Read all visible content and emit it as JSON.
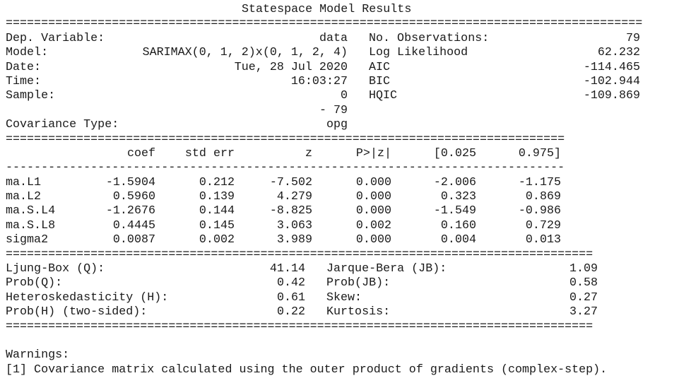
{
  "title": "Statespace Model Results",
  "header": {
    "left": [
      {
        "label": "Dep. Variable:",
        "value": "data"
      },
      {
        "label": "Model:",
        "value": "SARIMAX(0, 1, 2)x(0, 1, 2, 4)"
      },
      {
        "label": "Date:",
        "value": "Tue, 28 Jul 2020"
      },
      {
        "label": "Time:",
        "value": "16:03:27"
      },
      {
        "label": "Sample:",
        "value": "0"
      },
      {
        "label": "",
        "value": "- 79"
      },
      {
        "label": "Covariance Type:",
        "value": "opg"
      }
    ],
    "right": [
      {
        "label": "No. Observations:",
        "value": "79"
      },
      {
        "label": "Log Likelihood",
        "value": "62.232"
      },
      {
        "label": "AIC",
        "value": "-114.465"
      },
      {
        "label": "BIC",
        "value": "-102.944"
      },
      {
        "label": "HQIC",
        "value": "-109.869"
      }
    ]
  },
  "coef_table": {
    "columns": [
      "coef",
      "std err",
      "z",
      "P>|z|",
      "[0.025",
      "0.975]"
    ],
    "rows": [
      {
        "name": "ma.L1",
        "coef": "-1.5904",
        "std_err": "0.212",
        "z": "-7.502",
        "p": "0.000",
        "lo": "-2.006",
        "hi": "-1.175"
      },
      {
        "name": "ma.L2",
        "coef": "0.5960",
        "std_err": "0.139",
        "z": "4.279",
        "p": "0.000",
        "lo": "0.323",
        "hi": "0.869"
      },
      {
        "name": "ma.S.L4",
        "coef": "-1.2676",
        "std_err": "0.144",
        "z": "-8.825",
        "p": "0.000",
        "lo": "-1.549",
        "hi": "-0.986"
      },
      {
        "name": "ma.S.L8",
        "coef": "0.4445",
        "std_err": "0.145",
        "z": "3.063",
        "p": "0.002",
        "lo": "0.160",
        "hi": "0.729"
      },
      {
        "name": "sigma2",
        "coef": "0.0087",
        "std_err": "0.002",
        "z": "3.989",
        "p": "0.000",
        "lo": "0.004",
        "hi": "0.013"
      }
    ]
  },
  "diagnostics": {
    "left": [
      {
        "label": "Ljung-Box (Q):",
        "value": "41.14"
      },
      {
        "label": "Prob(Q):",
        "value": "0.42"
      },
      {
        "label": "Heteroskedasticity (H):",
        "value": "0.61"
      },
      {
        "label": "Prob(H) (two-sided):",
        "value": "0.22"
      }
    ],
    "right": [
      {
        "label": "Jarque-Bera (JB):",
        "value": "1.09"
      },
      {
        "label": "Prob(JB):",
        "value": "0.58"
      },
      {
        "label": "Skew:",
        "value": "0.27"
      },
      {
        "label": "Kurtosis:",
        "value": "3.27"
      }
    ]
  },
  "warnings": {
    "heading": "Warnings:",
    "items": [
      "[1] Covariance matrix calculated using the outer product of gradients (complex-step)."
    ]
  }
}
